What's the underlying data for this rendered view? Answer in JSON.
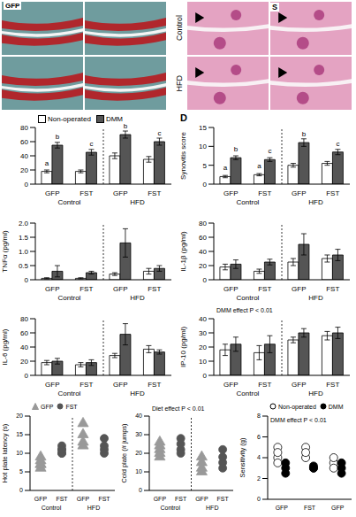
{
  "images": {
    "left": {
      "label": "GFP"
    },
    "right": {
      "rows": [
        "Control",
        "HFD"
      ],
      "label": "S"
    }
  },
  "chart_data": [
    {
      "type": "bar",
      "categories": [
        "GFP",
        "FST",
        "GFP",
        "FST"
      ],
      "groups": [
        "Control",
        "Control",
        "HFD",
        "HFD"
      ],
      "ylim": [
        0,
        80
      ],
      "yticks": [
        0,
        20,
        40,
        60,
        80
      ],
      "legend": "top",
      "series": [
        {
          "name": "Non-operated",
          "color": "#ffffff",
          "values": [
            18,
            18,
            40,
            35
          ],
          "errors": [
            2,
            2,
            4,
            4
          ],
          "letters": [
            "a",
            null,
            null,
            null
          ]
        },
        {
          "name": "DMM",
          "color": "#555555",
          "values": [
            55,
            45,
            70,
            60
          ],
          "errors": [
            4,
            4,
            5,
            5
          ],
          "letters": [
            "b",
            "c",
            "b",
            "c"
          ]
        }
      ]
    },
    {
      "type": "bar",
      "panel": "D",
      "y_label": "Synovitis score",
      "categories": [
        "GFP",
        "FST",
        "GFP",
        "FST"
      ],
      "groups": [
        "Control",
        "Control",
        "HFD",
        "HFD"
      ],
      "ylim": [
        0,
        15
      ],
      "yticks": [
        0,
        5,
        10,
        15
      ],
      "series": [
        {
          "name": "Non-operated",
          "color": "#ffffff",
          "values": [
            2,
            2.5,
            5,
            5.5
          ],
          "errors": [
            0.3,
            0.3,
            0.5,
            0.5
          ],
          "letters": [
            "a",
            "a",
            null,
            null
          ]
        },
        {
          "name": "DMM",
          "color": "#555555",
          "values": [
            7,
            6.5,
            11,
            8.5
          ],
          "errors": [
            0.5,
            0.5,
            1,
            0.7
          ],
          "letters": [
            "b",
            "c",
            "b",
            "c"
          ]
        }
      ]
    },
    {
      "type": "bar",
      "y_label": "TNFα (pg/ml)",
      "categories": [
        "GFP",
        "FST",
        "GFP",
        "FST"
      ],
      "groups": [
        "Control",
        "Control",
        "HFD",
        "HFD"
      ],
      "ylim": [
        0,
        2
      ],
      "yticks": [
        0,
        0.5,
        {
          "value": 1,
          "label": "1.0"
        },
        1.5,
        {
          "value": 2,
          "label": "2.0"
        }
      ],
      "series": [
        {
          "name": "Non-operated",
          "color": "#ffffff",
          "values": [
            0.05,
            0.05,
            0.2,
            0.3
          ],
          "errors": [
            0.02,
            0.02,
            0.05,
            0.1
          ]
        },
        {
          "name": "DMM",
          "color": "#555555",
          "values": [
            0.3,
            0.25,
            1.3,
            0.4
          ],
          "errors": [
            0.2,
            0.05,
            0.5,
            0.1
          ]
        }
      ]
    },
    {
      "type": "bar",
      "y_label": "IL-1β (pg/ml)",
      "categories": [
        "GFP",
        "FST",
        "GFP",
        "FST"
      ],
      "groups": [
        "Control",
        "Control",
        "HFD",
        "HFD"
      ],
      "ylim": [
        0,
        80
      ],
      "yticks": [
        0,
        20,
        40,
        60,
        80
      ],
      "series": [
        {
          "name": "Non-operated",
          "color": "#ffffff",
          "values": [
            18,
            12,
            25,
            30
          ],
          "errors": [
            4,
            3,
            5,
            5
          ]
        },
        {
          "name": "DMM",
          "color": "#555555",
          "values": [
            22,
            25,
            50,
            35
          ],
          "errors": [
            6,
            4,
            15,
            8
          ]
        }
      ]
    },
    {
      "type": "bar",
      "y_label": "IL-6 (pg/ml)",
      "categories": [
        "GFP",
        "FST",
        "GFP",
        "FST"
      ],
      "groups": [
        "Control",
        "Control",
        "HFD",
        "HFD"
      ],
      "ylim": [
        0,
        80
      ],
      "yticks": [
        0,
        20,
        40,
        60,
        80
      ],
      "series": [
        {
          "name": "Non-operated",
          "color": "#ffffff",
          "values": [
            18,
            15,
            28,
            37
          ],
          "errors": [
            3,
            3,
            3,
            5
          ]
        },
        {
          "name": "DMM",
          "color": "#555555",
          "values": [
            20,
            18,
            58,
            33
          ],
          "errors": [
            4,
            4,
            15,
            3
          ]
        }
      ]
    },
    {
      "type": "bar",
      "y_label": "IP-10 (pg/ml)",
      "annotation": "DMM effect P < 0.01",
      "categories": [
        "GFP",
        "FST",
        "GFP",
        "FST"
      ],
      "groups": [
        "Control",
        "Control",
        "HFD",
        "HFD"
      ],
      "ylim": [
        0,
        40
      ],
      "yticks": [
        0,
        10,
        20,
        30,
        40
      ],
      "series": [
        {
          "name": "Non-operated",
          "color": "#ffffff",
          "values": [
            18,
            16,
            25,
            28
          ],
          "errors": [
            4,
            5,
            2,
            3
          ]
        },
        {
          "name": "DMM",
          "color": "#555555",
          "values": [
            22,
            22,
            30,
            30
          ],
          "errors": [
            5,
            6,
            3,
            4
          ]
        }
      ]
    },
    {
      "type": "scatter",
      "y_label": "Hot plate latency (s)",
      "categories": [
        "GFP",
        "FST",
        "GFP",
        "FST"
      ],
      "groups": [
        "Control",
        "Control",
        "HFD",
        "HFD"
      ],
      "ylim": [
        0,
        20
      ],
      "yticks": [
        0,
        5,
        10,
        15,
        20
      ],
      "legend": "top",
      "series": [
        {
          "name": "GFP",
          "color": "#999999",
          "marker": "triangle",
          "values": [
            [
              6,
              7,
              8,
              9,
              7
            ],
            null,
            [
              13,
              15,
              18,
              12
            ],
            null
          ]
        },
        {
          "name": "FST",
          "color": "#555555",
          "marker": "circle",
          "values": [
            null,
            [
              10,
              11,
              12,
              10,
              11
            ],
            null,
            [
              10,
              11,
              12,
              14
            ]
          ]
        }
      ]
    },
    {
      "type": "scatter",
      "y_label": "Cold plate (# jumps)",
      "annotation": "Diet effect P < 0.01",
      "categories": [
        "GFP",
        "FST",
        "GFP",
        "FST"
      ],
      "groups": [
        "Control",
        "Control",
        "HFD",
        "HFD"
      ],
      "ylim": [
        0,
        40
      ],
      "yticks": [
        0,
        10,
        20,
        30,
        40
      ],
      "series": [
        {
          "name": "GFP",
          "color": "#999999",
          "marker": "triangle",
          "values": [
            [
              20,
              24,
              22,
              26,
              18
            ],
            null,
            [
              12,
              15,
              10,
              18
            ],
            null
          ]
        },
        {
          "name": "FST",
          "color": "#555555",
          "marker": "circle",
          "values": [
            null,
            [
              22,
              25,
              20,
              28
            ],
            null,
            [
              15,
              18,
              22,
              12
            ]
          ]
        }
      ]
    },
    {
      "type": "scatter",
      "y_label": "Sensitivity (g)",
      "annotation": "DMM effect P < 0.01",
      "categories": [
        "GFP",
        "FST",
        "GFP"
      ],
      "ylim": [
        0,
        8
      ],
      "yticks": [
        0,
        2,
        4,
        6,
        8
      ],
      "legend": "top",
      "series": [
        {
          "name": "Non-operated",
          "color": "#000000",
          "marker": "circle_open",
          "values": [
            [
              4,
              5,
              3.5,
              4.5
            ],
            [
              4,
              5,
              4.5
            ],
            [
              3.5,
              3,
              4
            ]
          ]
        },
        {
          "name": "DMM",
          "color": "#000000",
          "marker": "circle",
          "values": [
            [
              3,
              3.5,
              2.5
            ],
            [
              3,
              3.2,
              3
            ],
            [
              3,
              3.5,
              2.5
            ]
          ]
        }
      ]
    }
  ]
}
